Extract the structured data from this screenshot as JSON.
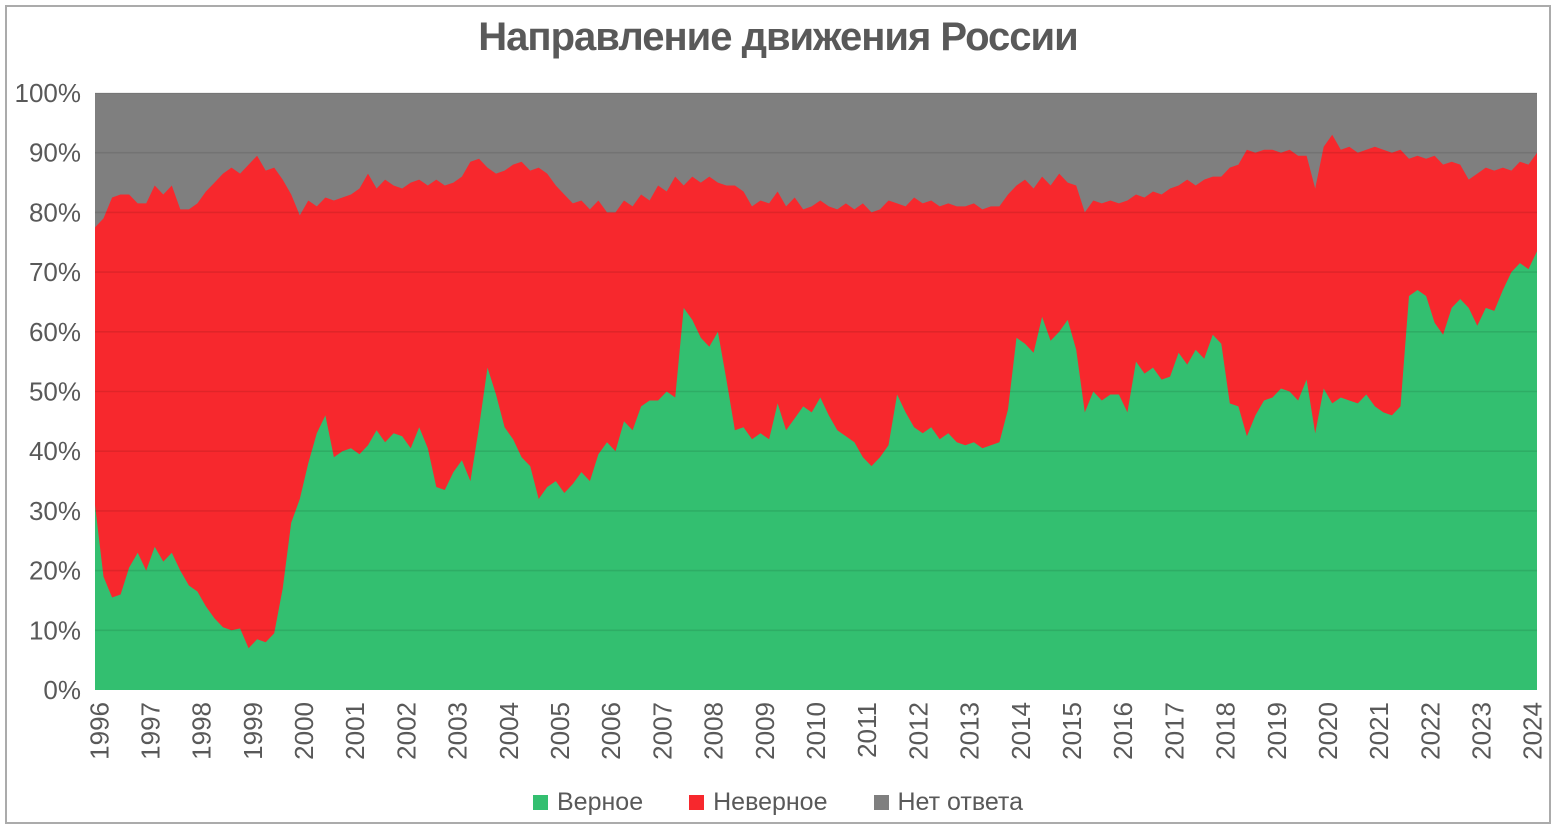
{
  "title": "Направление движения России",
  "colors": {
    "green": "#33BF70",
    "red": "#F7282D",
    "gray": "#7F7F7F",
    "text": "#595959",
    "gridline": "rgba(0,0,0,0.09)",
    "border": "#ABABAB"
  },
  "chart_data": {
    "type": "area",
    "stacked": "percent",
    "title": "Направление движения России",
    "xlabel": "",
    "ylabel": "",
    "ylim": [
      0,
      100
    ],
    "grid": true,
    "legend_position": "bottom",
    "x_range_note": "monthly poll, Jan 1996 – early 2024, values sampled every 2 months",
    "points_per_year": 6,
    "x_tick_labels": [
      "1996",
      "1997",
      "1998",
      "1999",
      "2000",
      "2001",
      "2002",
      "2003",
      "2004",
      "2005",
      "2006",
      "2007",
      "2008",
      "2009",
      "2010",
      "2011",
      "2012",
      "2013",
      "2014",
      "2015",
      "2016",
      "2017",
      "2018",
      "2019",
      "2020",
      "2021",
      "2022",
      "2023",
      "2024"
    ],
    "y_tick_labels": [
      "0%",
      "10%",
      "20%",
      "30%",
      "40%",
      "50%",
      "60%",
      "70%",
      "80%",
      "90%",
      "100%"
    ],
    "series": [
      {
        "name": "Верное",
        "color": "#33BF70",
        "values": [
          31,
          19,
          15.5,
          16,
          20.5,
          23,
          20,
          24,
          21.5,
          23,
          20,
          17.5,
          16.5,
          14,
          12,
          10.5,
          10,
          10.3,
          7,
          8.5,
          8,
          9.5,
          17,
          28,
          32,
          38,
          43,
          46,
          39,
          40,
          40.5,
          39.5,
          41,
          43.5,
          41.5,
          43,
          42.5,
          40.5,
          44,
          40.5,
          34,
          33.5,
          36.5,
          38.5,
          35,
          44,
          54,
          49.5,
          44,
          42,
          39,
          37.5,
          32,
          34,
          35,
          33,
          34.5,
          36.5,
          35,
          39.5,
          41.5,
          40,
          45,
          43.5,
          47.5,
          48.5,
          48.5,
          50,
          49,
          64,
          62,
          59,
          57.5,
          60,
          52,
          43.5,
          44,
          42,
          43,
          42,
          48,
          43.5,
          45.5,
          47.5,
          46.5,
          49,
          46,
          43.5,
          42.5,
          41.5,
          39,
          37.5,
          39,
          41,
          49.5,
          46.5,
          44,
          43,
          44,
          42,
          43,
          41.5,
          41,
          41.5,
          40.5,
          41,
          41.5,
          47,
          59,
          58,
          56.5,
          62.5,
          58.5,
          60,
          62,
          57,
          46.5,
          50,
          48.5,
          49.5,
          49.5,
          46.5,
          55,
          53,
          54,
          52,
          52.5,
          56.5,
          54.5,
          57,
          55.5,
          59.5,
          58,
          48,
          47.5,
          42.5,
          46,
          48.5,
          49,
          50.5,
          50,
          48.5,
          52,
          43,
          50.5,
          48,
          49,
          48.5,
          48,
          49.5,
          47.5,
          46.5,
          46,
          47.5,
          66,
          67,
          66,
          61.5,
          59.5,
          64,
          65.5,
          64,
          61,
          64,
          63.5,
          67,
          70,
          71.5,
          70.5,
          73.5
        ]
      },
      {
        "name": "Неверное",
        "color": "#F7282D",
        "values": [
          46.5,
          60,
          67,
          67,
          62.5,
          58.5,
          61.5,
          60.5,
          61.5,
          61.5,
          60.5,
          63,
          65,
          69.5,
          73,
          76,
          77.5,
          76.2,
          81,
          81,
          79,
          78,
          68.5,
          55,
          47.5,
          44,
          38,
          36.5,
          43,
          42.5,
          42.5,
          44.5,
          45.5,
          40.5,
          44,
          41.5,
          41.5,
          44.5,
          41.5,
          44,
          51.5,
          51,
          48.5,
          47.5,
          53.5,
          45,
          33.5,
          37,
          43,
          46,
          49.5,
          49.5,
          55.5,
          52.5,
          49.5,
          50,
          47,
          45.5,
          45.5,
          42.5,
          38.5,
          40,
          37,
          37.5,
          35.5,
          33.5,
          36,
          33.5,
          37,
          20.5,
          24,
          26,
          28.5,
          25,
          32.5,
          41,
          39.5,
          39,
          39,
          39.5,
          35.5,
          37.5,
          37,
          33,
          34.5,
          33,
          35,
          37,
          39,
          39,
          42.5,
          42.5,
          41.5,
          41,
          32,
          34.5,
          38.5,
          38.5,
          38,
          39,
          38.5,
          39.5,
          40,
          40,
          40,
          40,
          39.5,
          36,
          25.5,
          27.5,
          27.5,
          23.5,
          26,
          26.5,
          23,
          27.5,
          33.5,
          32,
          33,
          32.5,
          32,
          35.5,
          28,
          29.5,
          29.5,
          31,
          31.5,
          28,
          31,
          27.5,
          30,
          26.5,
          28,
          39.5,
          40.5,
          48,
          44,
          42,
          41.5,
          39.5,
          40.5,
          41,
          37.5,
          41,
          40.5,
          45,
          41.5,
          42.5,
          42,
          41,
          43.5,
          44,
          44,
          43,
          23,
          22.5,
          23,
          28,
          28.5,
          24.5,
          22.5,
          21.5,
          25.5,
          23.5,
          23.5,
          20.5,
          17,
          17,
          17.5,
          16.5
        ]
      },
      {
        "name": "Нет ответа",
        "color": "#7F7F7F",
        "values": [
          22.5,
          21,
          17.5,
          17,
          17,
          18.5,
          18.5,
          15.5,
          17,
          15.5,
          19.5,
          19.5,
          18.5,
          16.5,
          15,
          13.5,
          12.5,
          13.5,
          12,
          10.5,
          13,
          12.5,
          14.5,
          17,
          20.5,
          18,
          19,
          17.5,
          18,
          17.5,
          17,
          16,
          13.5,
          16,
          14.5,
          15.5,
          16,
          15,
          14.5,
          15.5,
          14.5,
          15.5,
          15,
          14,
          11.5,
          11,
          12.5,
          13.5,
          13,
          12,
          11.5,
          13,
          12.5,
          13.5,
          15.5,
          17,
          18.5,
          18,
          19.5,
          18,
          20,
          20,
          18,
          19,
          17,
          18,
          15.5,
          16.5,
          14,
          15.5,
          14,
          15,
          14,
          15,
          15.5,
          15.5,
          16.5,
          19,
          18,
          18.5,
          16.5,
          19,
          17.5,
          19.5,
          19,
          18,
          19,
          19.5,
          18.5,
          19.5,
          18.5,
          20,
          19.5,
          18,
          18.5,
          19,
          17.5,
          18.5,
          18,
          19,
          18.5,
          19,
          19,
          18.5,
          19.5,
          19,
          19,
          17,
          15.5,
          14.5,
          16,
          14,
          15.5,
          13.5,
          15,
          15.5,
          20,
          18,
          18.5,
          18,
          18.5,
          18,
          17,
          17.5,
          16.5,
          17,
          16,
          15.5,
          14.5,
          15.5,
          14.5,
          14,
          14,
          12.5,
          12,
          9.5,
          10,
          9.5,
          9.5,
          10,
          9.5,
          10.5,
          10.5,
          16,
          9,
          7,
          9.5,
          9,
          10,
          9.5,
          9,
          9.5,
          10,
          9.5,
          11,
          10.5,
          11,
          10.5,
          12,
          11.5,
          12,
          14.5,
          13.5,
          12.5,
          13,
          12.5,
          13,
          11.5,
          12,
          10
        ]
      }
    ]
  }
}
